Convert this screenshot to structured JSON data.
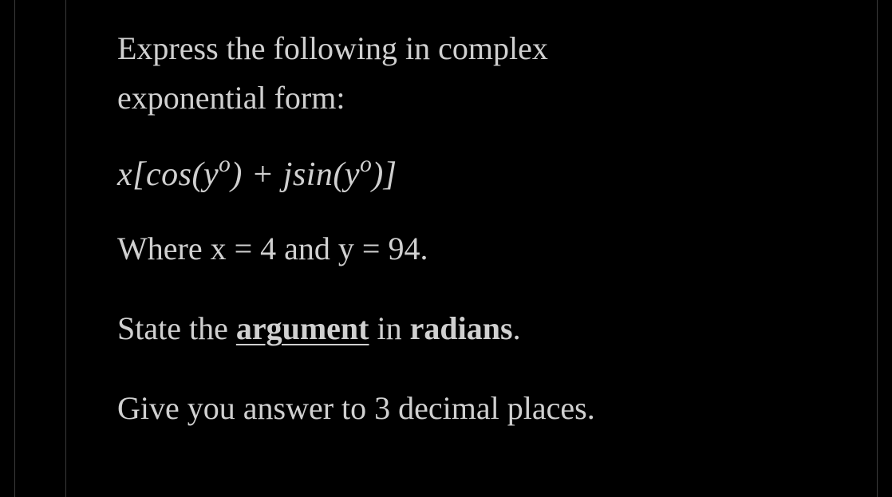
{
  "question": {
    "intro_line1": "Express the following in complex",
    "intro_line2": "exponential form:",
    "formula": {
      "raw": "x[cos(y°) + jsin(y°)]",
      "var1": "x",
      "open": "[",
      "fn1": "cos",
      "p1o": "(",
      "arg1": "y",
      "p1c": ")",
      "plus": " + ",
      "j": "j",
      "fn2": "sin",
      "p2o": "(",
      "arg2": "y",
      "p2c": ")",
      "close": "]",
      "degree": "o"
    },
    "values_prefix": "Where x = ",
    "x_value": "4",
    "values_mid": " and y = ",
    "y_value": "94",
    "values_suffix": ".",
    "instruction_prefix": "State the ",
    "instruction_underlined": "argument",
    "instruction_mid": " in ",
    "instruction_bold": "radians",
    "instruction_suffix": ".",
    "precision": "Give you answer to 3 decimal places."
  },
  "style": {
    "background": "#000000",
    "text_color": "#d0d0d0",
    "line_color": "#3a3a3a",
    "font_size_body": 40,
    "font_size_formula": 42
  }
}
